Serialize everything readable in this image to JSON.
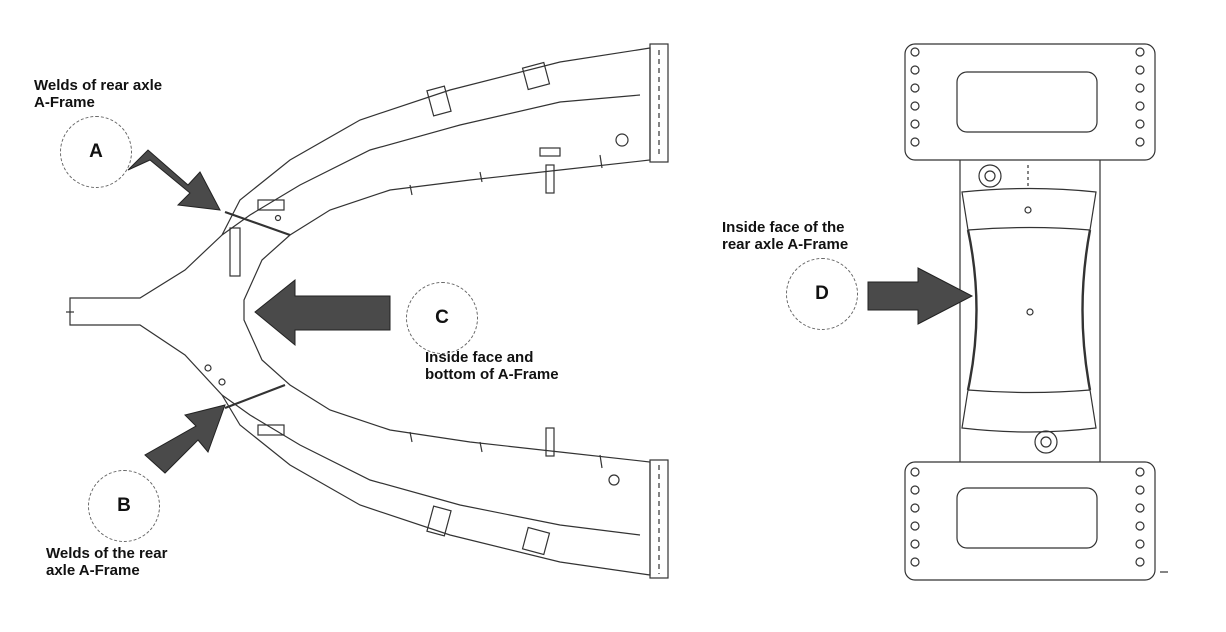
{
  "labels": {
    "a_text_line1": "Welds of rear axle",
    "a_text_line2": "A-Frame",
    "b_text_line1": "Welds of the rear",
    "b_text_line2": "axle A-Frame",
    "c_text_line1": "Inside face and",
    "c_text_line2": "bottom of A-Frame",
    "d_text_line1": "Inside face of the",
    "d_text_line2": "rear axle A-Frame"
  },
  "callouts": {
    "a": "A",
    "b": "B",
    "c": "C",
    "d": "D"
  },
  "colors": {
    "arrow": "#4a4a4a",
    "line": "#333333",
    "background": "#ffffff"
  },
  "icons": {
    "arrow": "arrow-icon",
    "callout": "dashed-circle-icon"
  }
}
